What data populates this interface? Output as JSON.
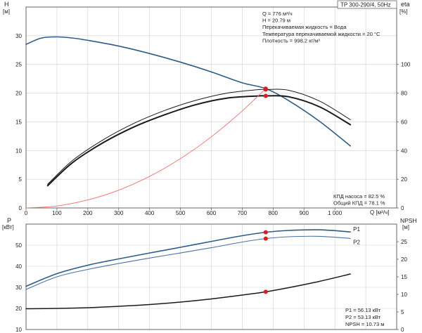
{
  "colors": {
    "frame": "#666666",
    "grid": "#d0d0d0",
    "head_curve": "#2b5c8a",
    "eta_curve": "#1a1a1a",
    "eta_curve_outer": "#1a1a1a",
    "system_curve": "#ff6b6b",
    "duty_point": "#e01b1b",
    "p1_curve": "#2b5c8a",
    "p2_curve": "#4a72a8",
    "npsh_curve": "#1a1a1a"
  },
  "header": {
    "model": "TP 300-290/4, 50Hz"
  },
  "info": {
    "lines": [
      "Q = 776 м³/ч",
      "H = 20.79 м",
      "Перекачиваемая жидкость = Вода",
      "Температура перекачиваемой жидкости = 20 °C",
      "Плотность = 998.2 кг/м³"
    ]
  },
  "top_summary": {
    "lines": [
      "КПД насоса = 82.5 %",
      "Общий КПД = 78.1 %"
    ]
  },
  "bottom_summary": {
    "lines": [
      "P1 = 56.13 кВт",
      "P2 = 53.13 кВт",
      "NPSH = 10.73 м"
    ]
  },
  "chart_data": [
    {
      "type": "line",
      "name": "head-efficiency",
      "xlabel": "Q [м³/ч]",
      "ylabel_left": "H",
      "ylabel_left_unit": "[м]",
      "ylabel_right": "eta",
      "ylabel_right_unit": "[%]",
      "xlim": [
        0,
        1200
      ],
      "ylim_left": [
        0,
        35
      ],
      "ylim_right": [
        0,
        140
      ],
      "x_ticks": [
        0,
        100,
        200,
        300,
        400,
        500,
        600,
        700,
        800,
        900,
        1000
      ],
      "x_tick_labels": [
        "0",
        "100",
        "200",
        "300",
        "400",
        "500",
        "600",
        "700",
        "800",
        "900",
        "1 000"
      ],
      "y_left_ticks": [
        0,
        5,
        10,
        15,
        20,
        25,
        30
      ],
      "y_right_ticks": [
        0,
        20,
        40,
        60,
        80,
        100
      ],
      "grid": true,
      "series": [
        {
          "key": "head",
          "axis": "left",
          "color_key": "head_curve",
          "width": 1.6,
          "x": [
            0,
            50,
            100,
            150,
            200,
            300,
            400,
            500,
            600,
            700,
            776,
            850,
            950,
            1050
          ],
          "y": [
            28.5,
            29.6,
            29.8,
            29.6,
            29.2,
            28.2,
            26.9,
            25.4,
            23.7,
            21.8,
            20.79,
            18.7,
            15.1,
            10.8
          ]
        },
        {
          "key": "eta_pump",
          "axis": "right",
          "color_key": "eta_curve_outer",
          "width": 1.0,
          "x": [
            70,
            150,
            250,
            350,
            450,
            550,
            650,
            750,
            776,
            850,
            950,
            1050
          ],
          "y": [
            16.5,
            33,
            47.5,
            59,
            68,
            75,
            80,
            82.4,
            82.5,
            82,
            74.5,
            61.5
          ]
        },
        {
          "key": "eta_total",
          "axis": "right",
          "color_key": "eta_curve",
          "width": 2.0,
          "x": [
            70,
            150,
            250,
            350,
            450,
            550,
            650,
            750,
            776,
            850,
            950,
            1050
          ],
          "y": [
            15.5,
            31.5,
            45.5,
            56.5,
            65,
            72,
            76.5,
            78,
            78.1,
            77.5,
            70.5,
            58
          ]
        },
        {
          "key": "system",
          "axis": "left",
          "color_key": "system_curve",
          "width": 0.9,
          "x": [
            0,
            100,
            200,
            300,
            400,
            500,
            600,
            700,
            776
          ],
          "y": [
            0,
            0.35,
            1.4,
            3.1,
            5.5,
            8.6,
            12.4,
            16.9,
            20.79
          ]
        }
      ],
      "points": [
        {
          "axis": "left",
          "x": 776,
          "y": 20.79
        },
        {
          "axis": "right",
          "x": 776,
          "y": 82.5
        },
        {
          "axis": "right",
          "x": 776,
          "y": 78.1
        }
      ]
    },
    {
      "type": "line",
      "name": "power-npsh",
      "ylabel_left": "P",
      "ylabel_left_unit": "[кВт]",
      "ylabel_right": "NPSH",
      "ylabel_right_unit": "[м]",
      "xlim": [
        0,
        1200
      ],
      "ylim_left": [
        10,
        60
      ],
      "ylim_right": [
        0,
        30
      ],
      "y_left_ticks": [
        10,
        20,
        30,
        40,
        50
      ],
      "y_right_ticks": [
        0,
        5,
        10,
        15,
        20,
        25
      ],
      "grid": true,
      "series": [
        {
          "key": "p1",
          "name": "P1",
          "axis": "left",
          "color_key": "p1_curve",
          "width": 1.6,
          "x": [
            0,
            100,
            200,
            300,
            400,
            500,
            600,
            700,
            776,
            850,
            950,
            1050
          ],
          "y": [
            30.5,
            36.5,
            40.5,
            43.5,
            46.3,
            49,
            51.8,
            54.5,
            56.13,
            57,
            57.3,
            56.3
          ]
        },
        {
          "key": "p2",
          "name": "P2",
          "axis": "left",
          "color_key": "p2_curve",
          "width": 1.1,
          "x": [
            0,
            100,
            200,
            300,
            400,
            500,
            600,
            700,
            776,
            850,
            950,
            1050
          ],
          "y": [
            29,
            35,
            38.5,
            41.3,
            43.9,
            46.3,
            48.8,
            51.5,
            53.13,
            54,
            54.2,
            53.2
          ]
        },
        {
          "key": "npsh",
          "axis": "right",
          "color_key": "npsh_curve",
          "width": 1.5,
          "x": [
            0,
            100,
            200,
            300,
            400,
            500,
            600,
            700,
            776,
            850,
            950,
            1050
          ],
          "y": [
            5.9,
            6.0,
            6.2,
            6.6,
            7.1,
            7.8,
            8.7,
            9.8,
            10.73,
            11.9,
            13.7,
            15.8
          ]
        }
      ],
      "points": [
        {
          "axis": "left",
          "x": 776,
          "y": 56.13
        },
        {
          "axis": "left",
          "x": 776,
          "y": 53.13
        },
        {
          "axis": "right",
          "x": 776,
          "y": 10.73
        }
      ]
    }
  ]
}
